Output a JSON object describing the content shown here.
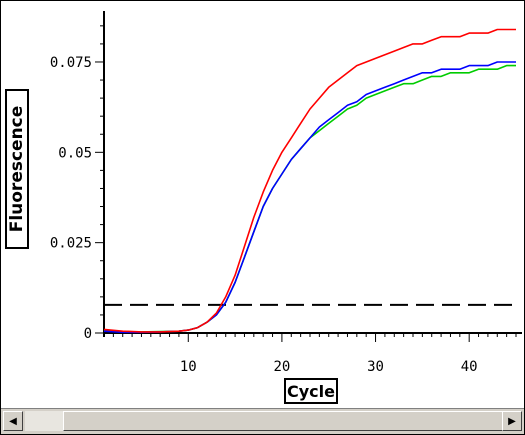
{
  "chart_data": {
    "type": "line",
    "xlabel": "Cycle",
    "ylabel": "Fluorescence",
    "xlim": [
      1,
      45
    ],
    "ylim": [
      0,
      0.088
    ],
    "x_ticks": [
      10,
      20,
      30,
      40
    ],
    "y_ticks": [
      0,
      0.025,
      0.05,
      0.075
    ],
    "y_tick_labels": [
      "0",
      "0.025",
      "0.05",
      "0.075"
    ],
    "threshold": 0.0078,
    "threshold_color": "#000000",
    "series": [
      {
        "color": "#ff0000",
        "x": [
          1,
          3,
          5,
          7,
          9,
          10,
          11,
          12,
          13,
          14,
          15,
          16,
          17,
          18,
          19,
          20,
          21,
          22,
          23,
          24,
          25,
          26,
          27,
          28,
          29,
          30,
          31,
          32,
          33,
          34,
          35,
          36,
          37,
          38,
          39,
          40,
          41,
          42,
          43,
          44,
          45
        ],
        "y": [
          0.001,
          0.0005,
          0.0003,
          0.0003,
          0.0005,
          0.0008,
          0.0015,
          0.003,
          0.0055,
          0.01,
          0.016,
          0.024,
          0.032,
          0.039,
          0.045,
          0.05,
          0.054,
          0.058,
          0.062,
          0.065,
          0.068,
          0.07,
          0.072,
          0.074,
          0.075,
          0.076,
          0.077,
          0.078,
          0.079,
          0.08,
          0.08,
          0.081,
          0.082,
          0.082,
          0.082,
          0.083,
          0.083,
          0.083,
          0.084,
          0.084,
          0.084
        ]
      },
      {
        "color": "#0000ff",
        "x": [
          1,
          3,
          5,
          7,
          9,
          10,
          11,
          12,
          13,
          14,
          15,
          16,
          17,
          18,
          19,
          20,
          21,
          22,
          23,
          24,
          25,
          26,
          27,
          28,
          29,
          30,
          31,
          32,
          33,
          34,
          35,
          36,
          37,
          38,
          39,
          40,
          41,
          42,
          43,
          44,
          45
        ],
        "y": [
          0.0005,
          0.0002,
          0.0002,
          0.0003,
          0.0005,
          0.0008,
          0.0015,
          0.003,
          0.005,
          0.0085,
          0.014,
          0.021,
          0.028,
          0.035,
          0.04,
          0.044,
          0.048,
          0.051,
          0.054,
          0.057,
          0.059,
          0.061,
          0.063,
          0.064,
          0.066,
          0.067,
          0.068,
          0.069,
          0.07,
          0.071,
          0.072,
          0.072,
          0.073,
          0.073,
          0.073,
          0.074,
          0.074,
          0.074,
          0.075,
          0.075,
          0.075
        ]
      },
      {
        "color": "#00cc00",
        "x": [
          1,
          3,
          5,
          7,
          9,
          10,
          11,
          12,
          13,
          14,
          15,
          16,
          17,
          18,
          19,
          20,
          21,
          22,
          23,
          24,
          25,
          26,
          27,
          28,
          29,
          30,
          31,
          32,
          33,
          34,
          35,
          36,
          37,
          38,
          39,
          40,
          41,
          42,
          43,
          44,
          45
        ],
        "y": [
          0.0007,
          0.0004,
          0.0003,
          0.0004,
          0.0005,
          0.0008,
          0.0015,
          0.003,
          0.005,
          0.0085,
          0.014,
          0.021,
          0.028,
          0.035,
          0.04,
          0.044,
          0.048,
          0.051,
          0.054,
          0.056,
          0.058,
          0.06,
          0.062,
          0.063,
          0.065,
          0.066,
          0.067,
          0.068,
          0.069,
          0.069,
          0.07,
          0.071,
          0.071,
          0.072,
          0.072,
          0.072,
          0.073,
          0.073,
          0.073,
          0.074,
          0.074
        ]
      }
    ]
  },
  "scrollbar": {
    "left_arrow": "◀",
    "right_arrow": "▶"
  }
}
